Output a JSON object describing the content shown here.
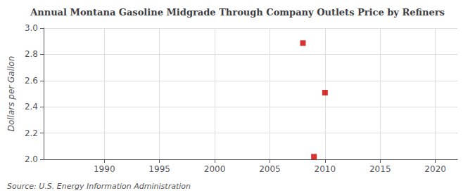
{
  "chart_data": {
    "type": "scatter",
    "title": "Annual Montana Gasoline Midgrade Through Company Outlets Price by Refiners",
    "ylabel": "Dollars per Gallon",
    "annotations": [
      "Source: U.S. Energy Information Administration"
    ],
    "x": [
      2008,
      2009,
      2010
    ],
    "values": [
      2.886,
      2.02,
      2.508
    ],
    "color": "#cc0000",
    "marker": "square",
    "xlim": [
      1984.5,
      2022
    ],
    "xticks": [
      1990,
      1995,
      2000,
      2005,
      2010,
      2015,
      2020
    ],
    "ylim": [
      2.0,
      3.0
    ],
    "yticks": [
      {
        "value": 2.0,
        "label": "2.0"
      },
      2.2,
      2.4,
      2.6,
      2.8,
      {
        "value": 3.0,
        "label": "3.0"
      }
    ],
    "grid": true
  }
}
